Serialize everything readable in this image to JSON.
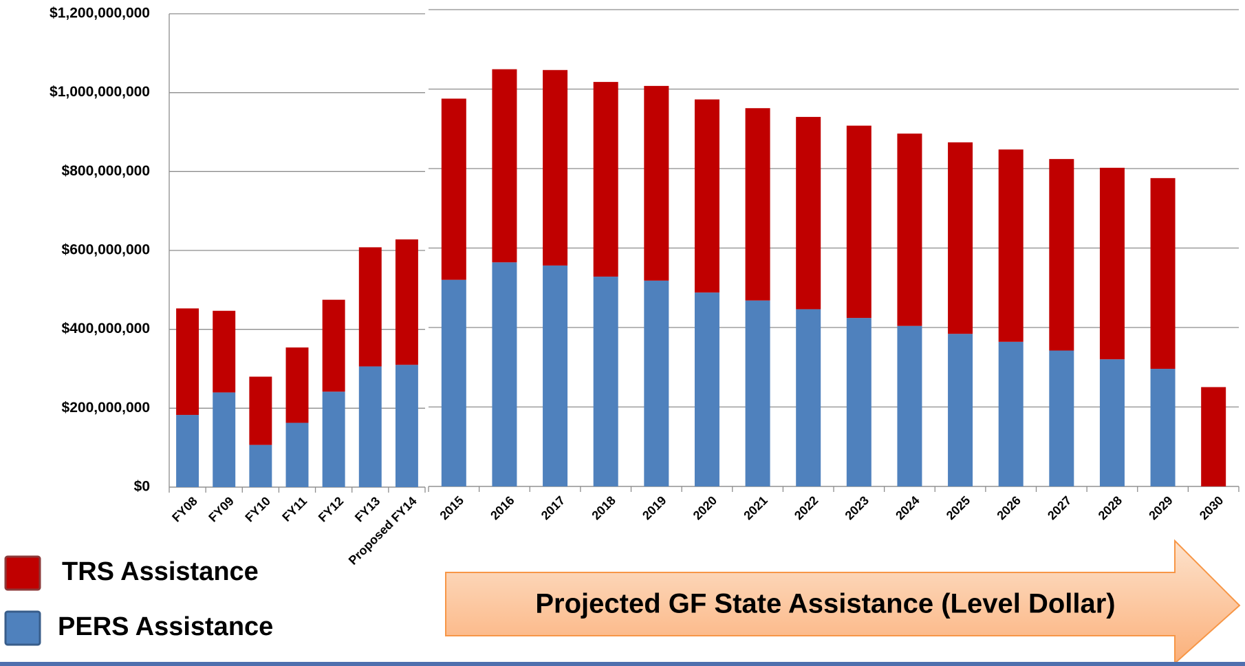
{
  "chart_data": [
    {
      "type": "bar",
      "stacked": true,
      "categories": [
        "FY08",
        "FY09",
        "FY10",
        "FY11",
        "FY12",
        "FY13",
        "Proposed FY14"
      ],
      "series": [
        {
          "name": "PERS Assistance",
          "color": "#4f81bd",
          "values": [
            183000000,
            240000000,
            107000000,
            163000000,
            242000000,
            306000000,
            310000000
          ]
        },
        {
          "name": "TRS Assistance",
          "color": "#c00000",
          "values": [
            270000000,
            207000000,
            173000000,
            191000000,
            233000000,
            302000000,
            318000000
          ]
        }
      ],
      "ylim": [
        0,
        1200000000
      ],
      "yticks": [
        {
          "value": 0,
          "label": "$0"
        },
        {
          "value": 200000000,
          "label": "$200,000,000"
        },
        {
          "value": 400000000,
          "label": "$400,000,000"
        },
        {
          "value": 600000000,
          "label": "$600,000,000"
        },
        {
          "value": 800000000,
          "label": "$800,000,000"
        },
        {
          "value": 1000000000,
          "label": "$1,000,000,000"
        },
        {
          "value": 1200000000,
          "label": "$1,200,000,000"
        }
      ],
      "grid": true,
      "legend": "bottom-left"
    },
    {
      "type": "bar",
      "stacked": true,
      "annotation": "Projected GF State Assistance (Level Dollar)",
      "categories": [
        "2015",
        "2016",
        "2017",
        "2018",
        "2019",
        "2020",
        "2021",
        "2022",
        "2023",
        "2024",
        "2025",
        "2026",
        "2027",
        "2028",
        "2029",
        "2030"
      ],
      "series": [
        {
          "name": "PERS Assistance",
          "color": "#4f81bd",
          "values": [
            520000000,
            564000000,
            556000000,
            528000000,
            518000000,
            488000000,
            468000000,
            446000000,
            424000000,
            404000000,
            384000000,
            364000000,
            342000000,
            320000000,
            296000000,
            0
          ]
        },
        {
          "name": "TRS Assistance",
          "color": "#c00000",
          "values": [
            456000000,
            486000000,
            492000000,
            490000000,
            490000000,
            486000000,
            484000000,
            484000000,
            484000000,
            484000000,
            482000000,
            484000000,
            482000000,
            482000000,
            480000000,
            250000000
          ]
        }
      ],
      "ylim": [
        0,
        1200000000
      ],
      "yticks": [
        0,
        200000000,
        400000000,
        600000000,
        800000000,
        1000000000,
        1200000000
      ],
      "grid": true
    }
  ]
}
